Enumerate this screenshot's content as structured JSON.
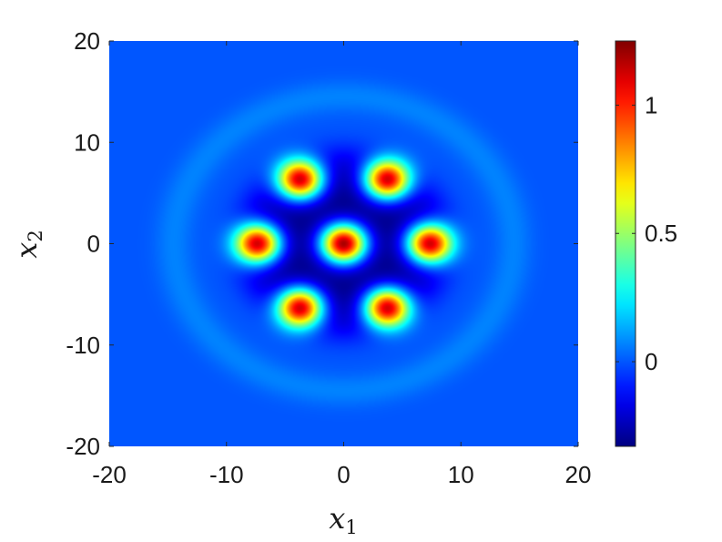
{
  "chart_data": {
    "type": "heatmap",
    "title": "",
    "xlabel": "x",
    "xlabel_sub": "1",
    "ylabel": "x",
    "ylabel_sub": "2",
    "xlim": [
      -20,
      20
    ],
    "ylim": [
      -20,
      20
    ],
    "x_ticks": [
      -20,
      -10,
      0,
      10,
      20
    ],
    "y_ticks": [
      -20,
      -10,
      0,
      10,
      20
    ],
    "x_tick_labels": [
      "-20",
      "-10",
      "0",
      "10",
      "20"
    ],
    "y_tick_labels": [
      "-20",
      "-10",
      "0",
      "10",
      "20"
    ],
    "colormap": "jet",
    "colorbar": {
      "min": -0.33,
      "max": 1.25,
      "ticks": [
        0,
        0.5,
        1
      ],
      "tick_labels": [
        "0",
        "0.5",
        "1"
      ],
      "placement": "right"
    },
    "background_value": 0.0,
    "peaks": [
      {
        "x": 0.0,
        "y": 0.0,
        "value": 1.25
      },
      {
        "x": -7.3,
        "y": 0.0,
        "value": 1.1
      },
      {
        "x": 7.3,
        "y": 0.0,
        "value": 1.1
      },
      {
        "x": -3.7,
        "y": 6.3,
        "value": 1.1
      },
      {
        "x": 3.7,
        "y": 6.3,
        "value": 1.1
      },
      {
        "x": -3.7,
        "y": -6.3,
        "value": 1.1
      },
      {
        "x": 3.7,
        "y": -6.3,
        "value": 1.1
      }
    ],
    "peak_width": 1.35,
    "trough_value": -0.33,
    "trough_radius": 9.0,
    "outer_ring_value": 0.07,
    "outer_ring_radius": 14.5
  }
}
